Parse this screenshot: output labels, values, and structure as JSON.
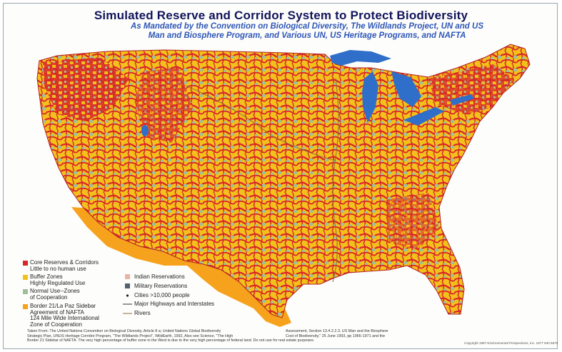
{
  "title": "Simulated Reserve and Corridor System to Protect Biodiversity",
  "subtitle_lines": [
    "As Mandated by the Convention on  Biological Diversity, The Wildlands Project, UN and US",
    "Man and Biosphere Program, and Various UN, US Heritage Programs, and NAFTA"
  ],
  "colors": {
    "core": "#d8262a",
    "buffer": "#f3c11b",
    "normal": "#9fbf9a",
    "border": "#f6a21d",
    "indian": "#e9b3a8",
    "military": "#56606a",
    "water": "#2f6fc9",
    "title": "#12145c",
    "subtitle": "#2f57b8"
  },
  "legend": {
    "left": [
      {
        "line1": "Core Reserves & Corridors",
        "line2": "Little to no human use",
        "line3": "",
        "color_key": "core"
      },
      {
        "line1": "Buffer Zones",
        "line2": "Highly Regulated Use",
        "line3": "",
        "color_key": "buffer"
      },
      {
        "line1": "Normal Use--Zones",
        "line2": "of Cooperation",
        "line3": "",
        "color_key": "normal"
      },
      {
        "line1": "Border 21/La Paz Sidebar",
        "line2": "Agreement of NAFTA",
        "line3": "124 Mile Wide International",
        "line4": "Zone of Cooperation",
        "color_key": "border"
      }
    ],
    "right": [
      {
        "label": "Indian Reservations",
        "symbol": "square",
        "color_key": "indian"
      },
      {
        "label": "Military Reservations",
        "symbol": "square",
        "color_key": "military"
      },
      {
        "label": "Cities >10,000 people",
        "symbol": "dot"
      },
      {
        "label": "Major Highways and Interstates",
        "symbol": "line"
      },
      {
        "label": "Rivers",
        "symbol": "line"
      }
    ]
  },
  "footnote": {
    "line1": "Taken From: The United Nations Convention on Biological Diversity, Article 8 a; United Nations Global Biodiversity",
    "line2": "Strategic Plan, UNUS Heritage Corridor Program, \"The Wildlands Project\", WildEarth, 1992, Also see Science, \"The High",
    "line3": "Border 21 Sidebar of NAFTA. The very high percentage of buffer zone in the West is due to the very high percentage of federal land. Do not use for real estate purposes.",
    "right_line1": "Assessment, Section 13.4.2.2.3, US Man and the Biosphere",
    "right_line2": "Cost of Biodiversity,\" 25 June 1993, pp 1966-1971 and the"
  },
  "copyright": "Copyright 1997 Environmental Perspectives, Inc. 1977 840 5879"
}
